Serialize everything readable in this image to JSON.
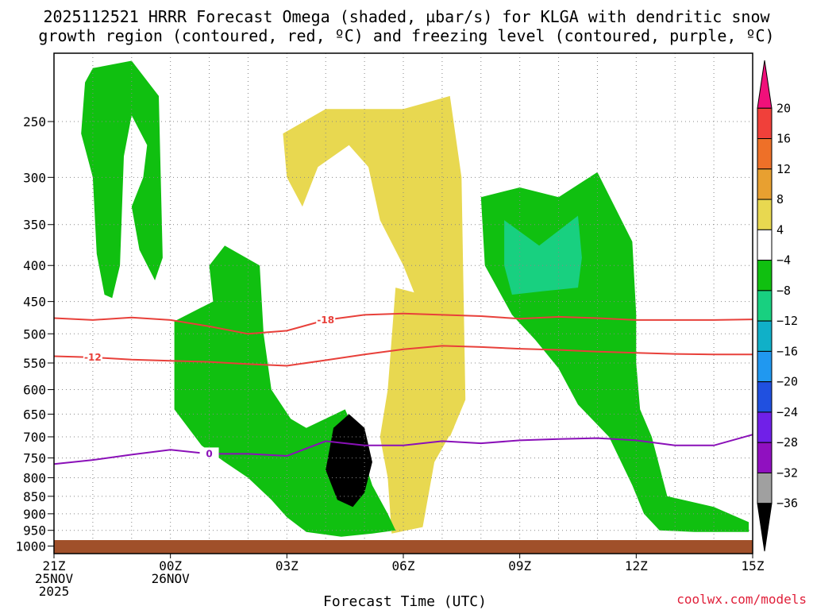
{
  "chart_data": {
    "type": "heatmap",
    "title_line1": "2025112521 HRRR Forecast Omega (shaded, µbar/s) for KLGA with dendritic snow",
    "title_line2": "growth region (contoured, red, ºC) and freezing level (contoured, purple, ºC)",
    "xlabel": "Forecast Time (UTC)",
    "ylabel": "",
    "credit": "coolwx.com/models",
    "x_ticks": [
      {
        "hour": 0,
        "lines": [
          "21Z",
          "25NOV",
          "2025"
        ]
      },
      {
        "hour": 3,
        "lines": [
          "00Z",
          "26NOV"
        ]
      },
      {
        "hour": 6,
        "lines": [
          "03Z"
        ]
      },
      {
        "hour": 9,
        "lines": [
          "06Z"
        ]
      },
      {
        "hour": 12,
        "lines": [
          "09Z"
        ]
      },
      {
        "hour": 15,
        "lines": [
          "12Z"
        ]
      },
      {
        "hour": 18,
        "lines": [
          "15Z"
        ]
      }
    ],
    "y_ticks": [
      250,
      300,
      350,
      400,
      450,
      500,
      550,
      600,
      650,
      700,
      750,
      800,
      850,
      900,
      950,
      1000
    ],
    "ylim_hpa": [
      200,
      1025
    ],
    "xlim_hours": [
      0,
      18
    ],
    "colorbar": {
      "units": "µbar/s",
      "levels": [
        -36,
        -32,
        -28,
        -24,
        -20,
        -16,
        -12,
        -8,
        -4,
        4,
        8,
        12,
        16,
        20
      ],
      "colors_top_to_bottom": [
        "#f0107a",
        "#f0403a",
        "#ee7028",
        "#e8a030",
        "#e8d850",
        "#ffffff",
        "#10c010",
        "#18d080",
        "#10b0c8",
        "#2098f0",
        "#2050e0",
        "#7020e8",
        "#9010c0",
        "#a0a0a0",
        "#000000"
      ],
      "tick_labels": [
        "20",
        "16",
        "12",
        "8",
        "4",
        "−4",
        "−8",
        "−12",
        "−16",
        "−20",
        "−24",
        "−28",
        "−32",
        "−36"
      ]
    },
    "contours": {
      "dgz_minus18": {
        "label": "-18",
        "color": "#e8403a",
        "points": [
          [
            0,
            475
          ],
          [
            1,
            478
          ],
          [
            2,
            474
          ],
          [
            3,
            478
          ],
          [
            4,
            488
          ],
          [
            5,
            500
          ],
          [
            6,
            495
          ],
          [
            7,
            478
          ],
          [
            8,
            470
          ],
          [
            9,
            468
          ],
          [
            10,
            470
          ],
          [
            11,
            472
          ],
          [
            12,
            476
          ],
          [
            13,
            473
          ],
          [
            14,
            475
          ],
          [
            15,
            478
          ],
          [
            16,
            478
          ],
          [
            17,
            478
          ],
          [
            18,
            477
          ]
        ]
      },
      "dgz_minus12": {
        "label": "-12",
        "color": "#e8403a",
        "points": [
          [
            0,
            538
          ],
          [
            1,
            540
          ],
          [
            2,
            544
          ],
          [
            3,
            546
          ],
          [
            4,
            548
          ],
          [
            5,
            552
          ],
          [
            6,
            555
          ],
          [
            7,
            545
          ],
          [
            8,
            535
          ],
          [
            9,
            526
          ],
          [
            10,
            520
          ],
          [
            11,
            522
          ],
          [
            12,
            525
          ],
          [
            13,
            527
          ],
          [
            14,
            530
          ],
          [
            15,
            532
          ],
          [
            16,
            534
          ],
          [
            17,
            535
          ],
          [
            18,
            535
          ]
        ]
      },
      "freezing_level": {
        "label": "0",
        "color": "#8a10b8",
        "points": [
          [
            0,
            765
          ],
          [
            1,
            755
          ],
          [
            2,
            742
          ],
          [
            3,
            730
          ],
          [
            4,
            740
          ],
          [
            5,
            740
          ],
          [
            6,
            745
          ],
          [
            7,
            710
          ],
          [
            8,
            720
          ],
          [
            9,
            720
          ],
          [
            10,
            710
          ],
          [
            11,
            715
          ],
          [
            12,
            708
          ],
          [
            13,
            705
          ],
          [
            14,
            703
          ],
          [
            15,
            708
          ],
          [
            16,
            720
          ],
          [
            17,
            720
          ],
          [
            18,
            695
          ]
        ]
      }
    },
    "regions": [
      {
        "desc": "weak ascent upper-left column",
        "min_value": -8,
        "color": "#10c010",
        "points": [
          [
            1,
            210
          ],
          [
            2,
            205
          ],
          [
            2.7,
            230
          ],
          [
            2.8,
            390
          ],
          [
            2.6,
            420
          ],
          [
            2.2,
            380
          ],
          [
            2.0,
            330
          ],
          [
            2.3,
            300
          ],
          [
            2.4,
            270
          ],
          [
            2.0,
            245
          ],
          [
            1.8,
            280
          ],
          [
            1.7,
            400
          ],
          [
            1.5,
            445
          ],
          [
            1.3,
            440
          ],
          [
            1.1,
            385
          ],
          [
            1.0,
            300
          ],
          [
            0.7,
            260
          ],
          [
            0.8,
            220
          ]
        ]
      },
      {
        "desc": "sinking upper",
        "min_value": 4,
        "color": "#e8d850",
        "points": [
          [
            5.9,
            260
          ],
          [
            7,
            240
          ],
          [
            9,
            240
          ],
          [
            10.2,
            230
          ],
          [
            10.5,
            300
          ],
          [
            10.6,
            620
          ],
          [
            10.2,
            700
          ],
          [
            9.9,
            620
          ],
          [
            9.6,
            540
          ],
          [
            9.3,
            440
          ],
          [
            9.0,
            400
          ],
          [
            8.4,
            345
          ],
          [
            8.1,
            290
          ],
          [
            7.6,
            270
          ],
          [
            6.8,
            290
          ],
          [
            6.4,
            330
          ],
          [
            6.0,
            300
          ]
        ]
      },
      {
        "desc": "sinking lower column",
        "min_value": 4,
        "color": "#e8d850",
        "points": [
          [
            8.8,
            430
          ],
          [
            9.5,
            440
          ],
          [
            10.5,
            520
          ],
          [
            10.3,
            680
          ],
          [
            9.8,
            760
          ],
          [
            9.5,
            940
          ],
          [
            8.7,
            960
          ],
          [
            8.6,
            800
          ],
          [
            8.4,
            700
          ],
          [
            8.6,
            600
          ]
        ]
      },
      {
        "desc": "ascent mid",
        "min_value": -8,
        "color": "#10c010",
        "points": [
          [
            12,
            310
          ],
          [
            13,
            320
          ],
          [
            14,
            295
          ],
          [
            14.9,
            370
          ],
          [
            15.0,
            470
          ],
          [
            15.0,
            550
          ],
          [
            15.1,
            640
          ],
          [
            15.4,
            700
          ],
          [
            15.8,
            850
          ],
          [
            17,
            880
          ],
          [
            17.9,
            925
          ],
          [
            17.9,
            955
          ],
          [
            16.5,
            955
          ],
          [
            15.6,
            950
          ],
          [
            15.2,
            900
          ],
          [
            14.9,
            820
          ],
          [
            14.3,
            700
          ],
          [
            13.5,
            630
          ],
          [
            13.0,
            560
          ],
          [
            12.4,
            510
          ],
          [
            11.8,
            470
          ],
          [
            11.1,
            400
          ],
          [
            11.0,
            320
          ]
        ]
      },
      {
        "desc": "moderate ascent mid",
        "min_value": -12,
        "color": "#18d080",
        "points": [
          [
            11.6,
            345
          ],
          [
            12.5,
            375
          ],
          [
            13.5,
            340
          ],
          [
            13.6,
            390
          ],
          [
            13.5,
            430
          ],
          [
            12.6,
            435
          ],
          [
            11.8,
            440
          ],
          [
            11.6,
            400
          ]
        ]
      },
      {
        "desc": "low ascent column around 03Z",
        "min_value": -8,
        "color": "#10c010",
        "points": [
          [
            3.1,
            480
          ],
          [
            4.1,
            450
          ],
          [
            4.0,
            400
          ],
          [
            4.4,
            375
          ],
          [
            5.3,
            400
          ],
          [
            5.4,
            500
          ],
          [
            5.6,
            600
          ],
          [
            6.1,
            660
          ],
          [
            6.5,
            680
          ],
          [
            7.5,
            640
          ],
          [
            7.8,
            700
          ],
          [
            8.2,
            820
          ],
          [
            8.6,
            900
          ],
          [
            8.8,
            950
          ],
          [
            8.2,
            960
          ],
          [
            7.4,
            970
          ],
          [
            6.5,
            955
          ],
          [
            6.0,
            910
          ],
          [
            5.6,
            860
          ],
          [
            5.0,
            800
          ],
          [
            4.4,
            760
          ],
          [
            3.8,
            720
          ],
          [
            3.1,
            640
          ]
        ]
      },
      {
        "desc": "intense ascent core",
        "min_value": -36,
        "color": "#000000",
        "points": [
          [
            7.2,
            680
          ],
          [
            7.6,
            650
          ],
          [
            8.0,
            680
          ],
          [
            8.2,
            760
          ],
          [
            8.0,
            840
          ],
          [
            7.7,
            880
          ],
          [
            7.3,
            860
          ],
          [
            7.0,
            780
          ]
        ]
      }
    ]
  }
}
